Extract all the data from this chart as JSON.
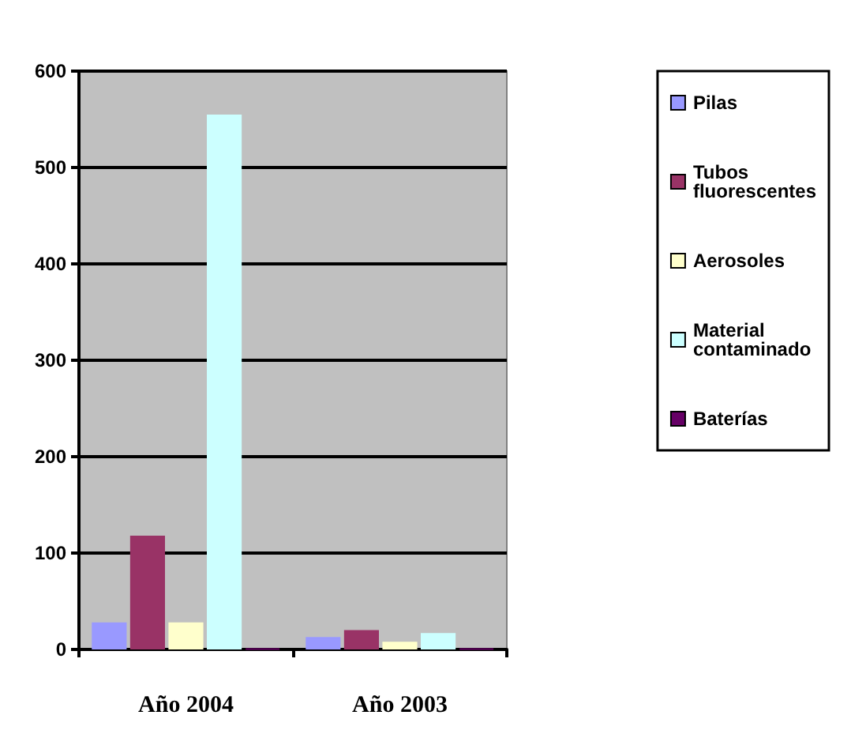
{
  "chart_data": {
    "type": "bar",
    "categories": [
      "Año 2004",
      "Año 2003"
    ],
    "series": [
      {
        "name": "Pilas",
        "color": "#9999ff",
        "values": [
          28,
          13
        ]
      },
      {
        "name": "Tubos fluorescentes",
        "color": "#993366",
        "values": [
          118,
          20
        ]
      },
      {
        "name": "Aerosoles",
        "color": "#ffffcc",
        "values": [
          28,
          8
        ]
      },
      {
        "name": "Material contaminado",
        "color": "#ccffff",
        "values": [
          555,
          17
        ]
      },
      {
        "name": "Baterías",
        "color": "#660066",
        "values": [
          1,
          1
        ]
      }
    ],
    "ylim": [
      0,
      600
    ],
    "yticks": [
      0,
      100,
      200,
      300,
      400,
      500,
      600
    ],
    "grid": "y",
    "legend": "right"
  }
}
